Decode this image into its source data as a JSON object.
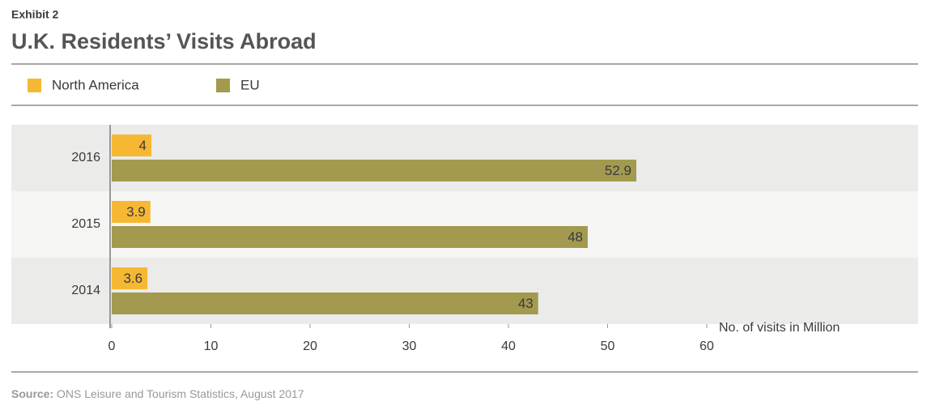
{
  "chart_data": {
    "type": "hbar",
    "kicker": "Exhibit 2",
    "title": "U.K. Residents’ Visits Abroad",
    "categories": [
      "2016",
      "2015",
      "2014"
    ],
    "series": [
      {
        "name": "North America",
        "color": "#f6b833",
        "values": [
          4,
          3.9,
          3.6
        ]
      },
      {
        "name": "EU",
        "color": "#a39a4f",
        "values": [
          52.9,
          48,
          43
        ]
      }
    ],
    "x_label": "No. of visits in Million",
    "xlim": [
      0,
      60
    ],
    "xticks": [
      0,
      10,
      20,
      30,
      40,
      50,
      60
    ],
    "source_label": "Source:",
    "source_text": "ONS Leisure and Tourism Statistics, August 2017"
  }
}
